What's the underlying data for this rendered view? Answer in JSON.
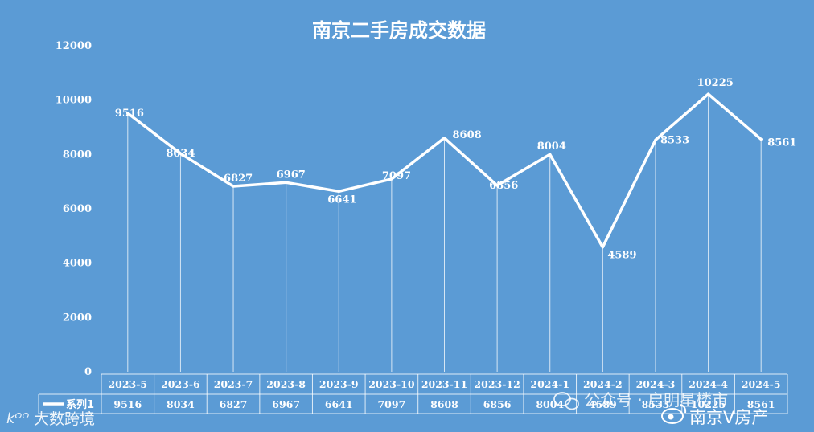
{
  "chart_data": {
    "type": "line",
    "title": "南京二手房成交数据",
    "categories": [
      "2023-5",
      "2023-6",
      "2023-7",
      "2023-8",
      "2023-9",
      "2023-10",
      "2023-11",
      "2023-12",
      "2024-1",
      "2024-2",
      "2024-3",
      "2024-4",
      "2024-5"
    ],
    "series": [
      {
        "name": "系列1",
        "values": [
          9516,
          8034,
          6827,
          6967,
          6641,
          7097,
          8608,
          6856,
          8004,
          4589,
          8533,
          10225,
          8561
        ]
      }
    ],
    "ylim": [
      0,
      12000
    ],
    "yticks": [
      0,
      2000,
      4000,
      6000,
      8000,
      10000,
      12000
    ],
    "grid": "vertical drop lines",
    "data_table": true,
    "legend": "in data table"
  },
  "colors": {
    "background": "#5b9bd5",
    "line": "#ffffff",
    "text": "#ffffff"
  },
  "watermarks": {
    "bottom_left": "大数跨境",
    "wechat": "公众号 · 启明星楼市",
    "weibo": "南京V房产"
  }
}
